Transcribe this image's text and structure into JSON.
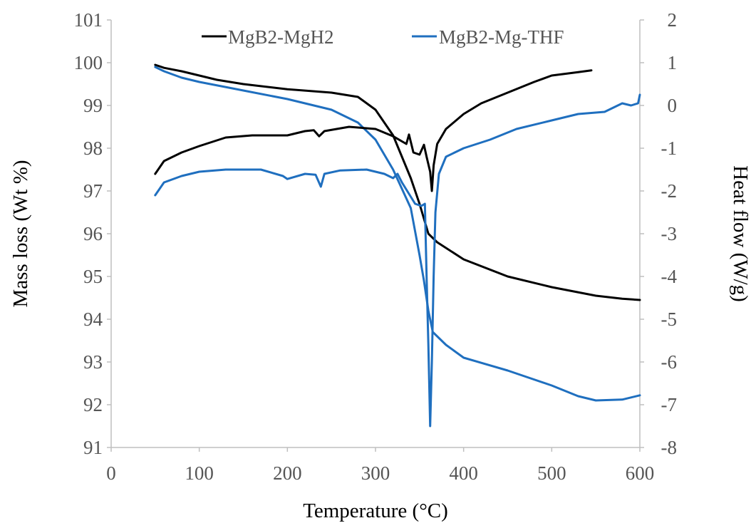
{
  "chart_data": {
    "type": "line",
    "title": "",
    "xlabel": "Temperature (°C)",
    "ylabel": "Mass loss (Wt %)",
    "y2label": "Heat flow (W/g)",
    "xlim": [
      0,
      600
    ],
    "ylim": [
      91,
      101
    ],
    "y2lim": [
      -8,
      2
    ],
    "xticks": [
      "0",
      "100",
      "200",
      "300",
      "400",
      "500",
      "600"
    ],
    "yticks": [
      "91",
      "92",
      "93",
      "94",
      "95",
      "96",
      "97",
      "98",
      "99",
      "100",
      "101"
    ],
    "y2ticks": [
      "-8",
      "-7",
      "-6",
      "-5",
      "-4",
      "-3",
      "-2",
      "-1",
      "0",
      "1",
      "2"
    ],
    "grid": false,
    "legend_position": "top",
    "colors": {
      "MgB2-MgH2": "#000000",
      "MgB2-Mg-THF": "#1f6fbf"
    },
    "series": [
      {
        "name": "MgB2-MgH2",
        "axis": "left",
        "points": [
          [
            50,
            99.95
          ],
          [
            60,
            99.88
          ],
          [
            80,
            99.8
          ],
          [
            100,
            99.7
          ],
          [
            120,
            99.6
          ],
          [
            150,
            99.5
          ],
          [
            200,
            99.38
          ],
          [
            250,
            99.3
          ],
          [
            280,
            99.2
          ],
          [
            300,
            98.9
          ],
          [
            320,
            98.3
          ],
          [
            340,
            97.3
          ],
          [
            350,
            96.7
          ],
          [
            360,
            96.0
          ],
          [
            370,
            95.8
          ],
          [
            400,
            95.4
          ],
          [
            450,
            95.0
          ],
          [
            500,
            94.75
          ],
          [
            550,
            94.55
          ],
          [
            580,
            94.48
          ],
          [
            600,
            94.45
          ]
        ]
      },
      {
        "name": "MgB2-Mg-THF",
        "axis": "left",
        "points": [
          [
            50,
            99.9
          ],
          [
            60,
            99.8
          ],
          [
            80,
            99.65
          ],
          [
            100,
            99.55
          ],
          [
            150,
            99.35
          ],
          [
            200,
            99.15
          ],
          [
            250,
            98.9
          ],
          [
            280,
            98.6
          ],
          [
            300,
            98.2
          ],
          [
            320,
            97.5
          ],
          [
            340,
            96.6
          ],
          [
            350,
            95.5
          ],
          [
            355,
            94.9
          ],
          [
            360,
            94.2
          ],
          [
            365,
            93.7
          ],
          [
            380,
            93.4
          ],
          [
            400,
            93.1
          ],
          [
            450,
            92.8
          ],
          [
            500,
            92.45
          ],
          [
            530,
            92.2
          ],
          [
            550,
            92.1
          ],
          [
            580,
            92.12
          ],
          [
            600,
            92.22
          ]
        ]
      },
      {
        "name": "MgB2-MgH2",
        "axis": "right",
        "points": [
          [
            50,
            -1.6
          ],
          [
            60,
            -1.3
          ],
          [
            80,
            -1.1
          ],
          [
            100,
            -0.95
          ],
          [
            130,
            -0.75
          ],
          [
            160,
            -0.7
          ],
          [
            200,
            -0.7
          ],
          [
            220,
            -0.6
          ],
          [
            230,
            -0.58
          ],
          [
            236,
            -0.72
          ],
          [
            242,
            -0.6
          ],
          [
            270,
            -0.5
          ],
          [
            300,
            -0.55
          ],
          [
            320,
            -0.72
          ],
          [
            335,
            -0.9
          ],
          [
            338,
            -0.68
          ],
          [
            343,
            -1.1
          ],
          [
            350,
            -1.15
          ],
          [
            355,
            -0.92
          ],
          [
            358,
            -1.2
          ],
          [
            362,
            -1.55
          ],
          [
            364,
            -2.0
          ],
          [
            366,
            -1.4
          ],
          [
            370,
            -0.9
          ],
          [
            380,
            -0.55
          ],
          [
            400,
            -0.2
          ],
          [
            420,
            0.05
          ],
          [
            450,
            0.3
          ],
          [
            480,
            0.55
          ],
          [
            500,
            0.7
          ],
          [
            530,
            0.78
          ],
          [
            545,
            0.82
          ]
        ]
      },
      {
        "name": "MgB2-Mg-THF",
        "axis": "right",
        "points": [
          [
            50,
            -2.1
          ],
          [
            55,
            -1.95
          ],
          [
            60,
            -1.8
          ],
          [
            80,
            -1.65
          ],
          [
            100,
            -1.55
          ],
          [
            130,
            -1.5
          ],
          [
            170,
            -1.5
          ],
          [
            195,
            -1.65
          ],
          [
            200,
            -1.72
          ],
          [
            220,
            -1.6
          ],
          [
            232,
            -1.62
          ],
          [
            238,
            -1.9
          ],
          [
            242,
            -1.6
          ],
          [
            260,
            -1.52
          ],
          [
            290,
            -1.5
          ],
          [
            310,
            -1.6
          ],
          [
            320,
            -1.7
          ],
          [
            325,
            -1.6
          ],
          [
            330,
            -1.8
          ],
          [
            345,
            -2.3
          ],
          [
            352,
            -2.35
          ],
          [
            356,
            -2.3
          ],
          [
            358,
            -4.0
          ],
          [
            360,
            -5.6
          ],
          [
            361,
            -6.5
          ],
          [
            362,
            -7.5
          ],
          [
            364,
            -6.0
          ],
          [
            366,
            -4.0
          ],
          [
            368,
            -2.5
          ],
          [
            372,
            -1.6
          ],
          [
            380,
            -1.2
          ],
          [
            400,
            -1.0
          ],
          [
            430,
            -0.8
          ],
          [
            460,
            -0.55
          ],
          [
            500,
            -0.35
          ],
          [
            530,
            -0.2
          ],
          [
            560,
            -0.15
          ],
          [
            570,
            -0.05
          ],
          [
            580,
            0.05
          ],
          [
            590,
            0.0
          ],
          [
            598,
            0.05
          ],
          [
            600,
            0.25
          ]
        ]
      }
    ]
  }
}
